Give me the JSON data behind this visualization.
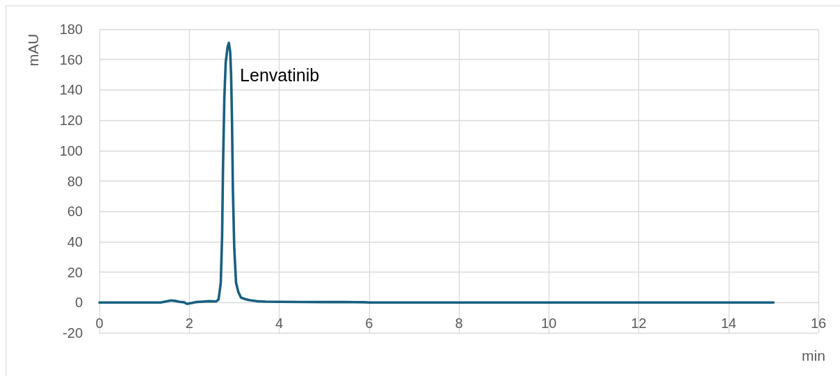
{
  "chart_data": {
    "type": "line",
    "xlabel": "min",
    "ylabel": "mAU",
    "annotations": [
      {
        "text": "Lenvatinib",
        "x": 2.88,
        "y": 171
      }
    ],
    "x": [
      0,
      1.0,
      1.36,
      1.5,
      1.6,
      1.7,
      1.78,
      1.88,
      1.95,
      2.05,
      2.14,
      2.3,
      2.44,
      2.6,
      2.65,
      2.7,
      2.73,
      2.75,
      2.78,
      2.81,
      2.85,
      2.88,
      2.91,
      2.93,
      2.95,
      2.97,
      3.0,
      3.04,
      3.09,
      3.15,
      3.25,
      3.35,
      3.5,
      3.7,
      4.0,
      4.5,
      5.0,
      5.5,
      5.9,
      6.0,
      8.0,
      10.0,
      12.0,
      14.0,
      15.0
    ],
    "series": [
      {
        "color": "#185f80",
        "values": [
          0,
          0,
          0,
          0.8,
          1.4,
          1.0,
          0.5,
          0.2,
          -0.9,
          -0.3,
          0.3,
          0.6,
          0.9,
          0.7,
          2,
          13,
          44,
          89,
          135,
          158,
          168,
          171,
          165,
          150,
          120,
          74,
          36,
          13,
          7,
          3.2,
          2.2,
          1.5,
          0.9,
          0.6,
          0.5,
          0.4,
          0.3,
          0.3,
          0.2,
          0,
          0,
          0,
          0,
          0,
          0
        ]
      }
    ],
    "xlim": [
      0,
      16
    ],
    "xticks": [
      0,
      2,
      4,
      6,
      8,
      10,
      12,
      14,
      16
    ],
    "ylim": [
      -20,
      180
    ],
    "yticks": [
      -20,
      0,
      20,
      40,
      60,
      80,
      100,
      120,
      140,
      160,
      180
    ],
    "grid": true,
    "marker": "none",
    "line_style": "solid"
  }
}
